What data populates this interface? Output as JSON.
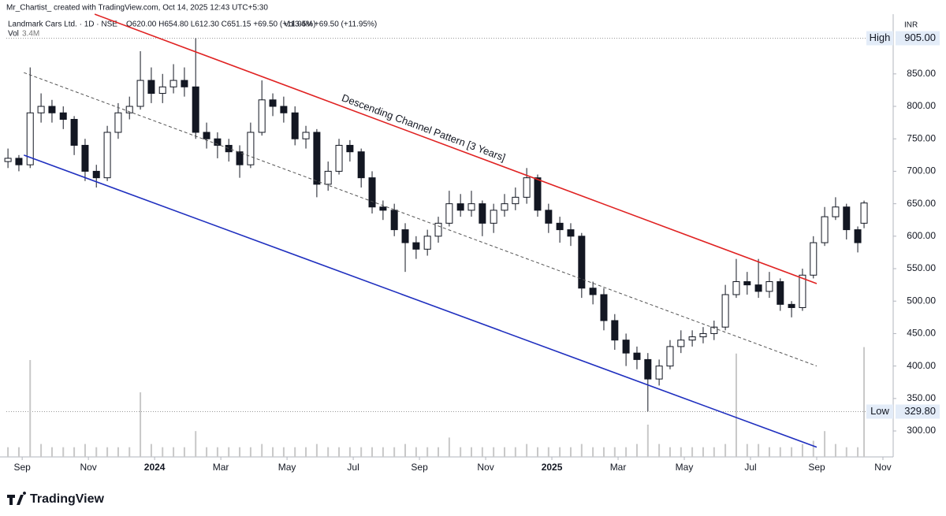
{
  "header": {
    "credit": "Mr_Chartist_ created with TradingView.com, Oct 14, 2025 12:43 UTC+5:30"
  },
  "chart_data": {
    "type": "candlestick",
    "title": "Landmark Cars Ltd. · 1D · NSE",
    "ohlc_text": "O620.00 H654.80 L612.30 C651.15 +69.50 (+11.95%)",
    "volume_text": "Vol3.4M +69.50 (+11.95%)",
    "volume_label": "Vol",
    "volume_value": "3.4M",
    "currency": "INR",
    "up_color": "#ffffff",
    "down_color": "#131722",
    "volume_color": "#c8c8c8",
    "x": [
      -0.43,
      -0.1,
      0.24,
      0.57,
      0.9,
      1.24,
      1.57,
      1.9,
      2.24,
      2.57,
      2.9,
      3.24,
      3.57,
      3.9,
      4.24,
      4.57,
      4.9,
      5.24,
      5.57,
      5.9,
      6.24,
      6.57,
      6.9,
      7.24,
      7.57,
      7.9,
      8.24,
      8.57,
      8.9,
      9.24,
      9.57,
      9.9,
      10.24,
      10.57,
      10.9,
      11.24,
      11.57,
      11.9,
      12.24,
      12.57,
      12.9,
      13.24,
      13.57,
      13.9,
      14.24,
      14.57,
      14.9,
      15.24,
      15.57,
      15.9,
      16.24,
      16.57,
      16.9,
      17.24,
      17.57,
      17.9,
      18.24,
      18.57,
      18.9,
      19.24,
      19.57,
      19.9,
      20.24,
      20.57,
      20.9,
      21.24,
      21.57,
      21.9,
      22.24,
      22.57,
      22.9,
      23.24,
      23.57,
      23.9,
      24.24,
      24.57,
      24.9,
      25.24,
      25.43
    ],
    "open": [
      715,
      720,
      710,
      790,
      800,
      790,
      780,
      740,
      700,
      690,
      760,
      790,
      800,
      840,
      820,
      830,
      840,
      830,
      760,
      750,
      740,
      730,
      710,
      760,
      810,
      800,
      790,
      750,
      760,
      680,
      700,
      740,
      730,
      690,
      645,
      640,
      610,
      590,
      580,
      600,
      620,
      650,
      640,
      650,
      620,
      640,
      650,
      660,
      690,
      640,
      620,
      610,
      600,
      520,
      510,
      470,
      440,
      420,
      410,
      380,
      400,
      430,
      440,
      445,
      450,
      460,
      510,
      530,
      525,
      515,
      530,
      495,
      490,
      540,
      590,
      630,
      645,
      610,
      620
    ],
    "high": [
      735,
      725,
      860,
      820,
      810,
      800,
      785,
      750,
      710,
      770,
      805,
      815,
      885,
      860,
      850,
      865,
      860,
      905,
      775,
      760,
      750,
      740,
      775,
      840,
      820,
      815,
      800,
      770,
      765,
      715,
      750,
      748,
      735,
      700,
      655,
      650,
      620,
      600,
      610,
      630,
      670,
      665,
      670,
      655,
      650,
      665,
      675,
      705,
      695,
      650,
      630,
      620,
      605,
      530,
      520,
      480,
      450,
      430,
      420,
      410,
      440,
      455,
      455,
      460,
      470,
      525,
      565,
      545,
      565,
      545,
      535,
      500,
      550,
      600,
      645,
      660,
      650,
      615,
      654.8
    ],
    "low": [
      705,
      700,
      705,
      775,
      775,
      765,
      725,
      685,
      675,
      685,
      750,
      780,
      795,
      805,
      805,
      820,
      815,
      750,
      735,
      720,
      715,
      690,
      705,
      755,
      785,
      775,
      740,
      735,
      660,
      670,
      695,
      715,
      675,
      635,
      625,
      600,
      545,
      565,
      570,
      590,
      615,
      630,
      630,
      600,
      605,
      630,
      640,
      650,
      630,
      605,
      590,
      585,
      505,
      495,
      455,
      425,
      400,
      395,
      330,
      370,
      395,
      420,
      430,
      435,
      440,
      455,
      505,
      510,
      505,
      505,
      485,
      475,
      485,
      535,
      585,
      625,
      595,
      575,
      612.3
    ],
    "close": [
      720,
      710,
      790,
      800,
      790,
      780,
      740,
      700,
      690,
      760,
      790,
      800,
      840,
      820,
      830,
      840,
      830,
      760,
      750,
      740,
      730,
      710,
      760,
      810,
      800,
      790,
      750,
      760,
      680,
      700,
      740,
      730,
      690,
      645,
      640,
      610,
      590,
      580,
      600,
      620,
      650,
      640,
      650,
      620,
      640,
      650,
      660,
      690,
      640,
      620,
      610,
      600,
      520,
      510,
      470,
      440,
      420,
      410,
      380,
      400,
      430,
      440,
      445,
      450,
      460,
      510,
      530,
      525,
      515,
      530,
      495,
      490,
      540,
      590,
      630,
      645,
      610,
      590,
      651.15
    ],
    "volume": [
      0.3,
      0.3,
      3.0,
      0.4,
      0.3,
      0.3,
      0.3,
      0.4,
      0.3,
      0.3,
      0.3,
      0.3,
      2.0,
      0.4,
      0.3,
      0.3,
      0.3,
      0.8,
      0.3,
      0.3,
      0.3,
      0.3,
      0.3,
      0.4,
      0.3,
      0.3,
      0.3,
      0.3,
      0.4,
      0.3,
      0.3,
      0.3,
      0.3,
      0.3,
      0.3,
      0.3,
      0.4,
      0.3,
      0.3,
      0.3,
      0.6,
      0.3,
      0.3,
      0.3,
      0.3,
      0.3,
      0.3,
      0.4,
      0.3,
      0.3,
      0.3,
      0.3,
      0.4,
      0.3,
      0.3,
      0.3,
      0.3,
      0.4,
      1.0,
      0.4,
      0.3,
      0.3,
      0.3,
      0.3,
      0.3,
      0.4,
      3.2,
      0.4,
      0.4,
      0.3,
      0.3,
      0.3,
      0.4,
      0.5,
      0.8,
      0.4,
      0.3,
      0.3,
      3.4
    ],
    "xlim": [
      -0.48,
      26.31
    ],
    "xticks": [
      {
        "value": 0,
        "label": "Sep"
      },
      {
        "value": 2,
        "label": "Nov"
      },
      {
        "value": 4,
        "label": "2024"
      },
      {
        "value": 6,
        "label": "Mar"
      },
      {
        "value": 8,
        "label": "May"
      },
      {
        "value": 10,
        "label": "Jul"
      },
      {
        "value": 12,
        "label": "Sep"
      },
      {
        "value": 14,
        "label": "Nov"
      },
      {
        "value": 16,
        "label": "2025"
      },
      {
        "value": 18,
        "label": "Mar"
      },
      {
        "value": 20,
        "label": "May"
      },
      {
        "value": 22,
        "label": "Jul"
      },
      {
        "value": 24,
        "label": "Sep"
      },
      {
        "value": 26,
        "label": "Nov"
      }
    ],
    "ylim": [
      260,
      942
    ],
    "yticks": [
      {
        "value": 300,
        "label": "300.00"
      },
      {
        "value": 350,
        "label": "350.00"
      },
      {
        "value": 400,
        "label": "400.00"
      },
      {
        "value": 450,
        "label": "450.00"
      },
      {
        "value": 500,
        "label": "500.00"
      },
      {
        "value": 550,
        "label": "550.00"
      },
      {
        "value": 600,
        "label": "600.00"
      },
      {
        "value": 650,
        "label": "650.00"
      },
      {
        "value": 700,
        "label": "700.00"
      },
      {
        "value": 750,
        "label": "750.00"
      },
      {
        "value": 800,
        "label": "800.00"
      },
      {
        "value": 850,
        "label": "850.00"
      }
    ],
    "high_marker": {
      "label": "High",
      "value": 905,
      "value_label": "905.00"
    },
    "low_marker": {
      "label": "Low",
      "value": 329.8,
      "value_label": "329.80"
    },
    "trendlines": [
      {
        "color": "#e02222",
        "dashed": false,
        "x": [
          2.19,
          24
        ],
        "y": [
          942,
          527
        ]
      },
      {
        "color": "#1f2fbf",
        "dashed": false,
        "x": [
          0.05,
          24
        ],
        "y": [
          725,
          275
        ]
      },
      {
        "color": "#555555",
        "dashed": true,
        "x": [
          0.05,
          24
        ],
        "y": [
          852,
          400
        ]
      }
    ],
    "annotation": "Descending Channel Pattern [3 Years]"
  },
  "footer": {
    "brand": "TradingView"
  }
}
